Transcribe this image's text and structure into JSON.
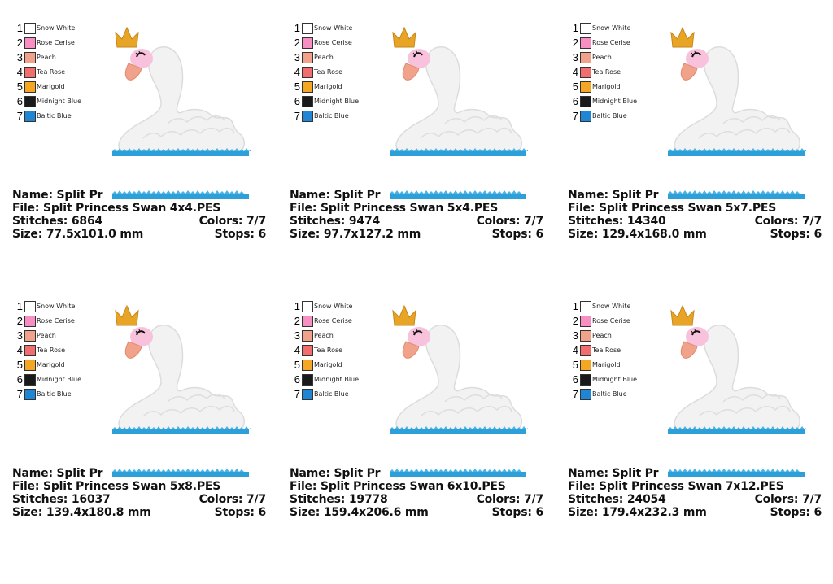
{
  "palette": [
    {
      "num": "1",
      "name": "Snow White",
      "color": "#ffffff"
    },
    {
      "num": "2",
      "name": "Rose Cerise",
      "color": "#f78fc2"
    },
    {
      "num": "3",
      "name": "Peach",
      "color": "#f0a38a"
    },
    {
      "num": "4",
      "name": "Tea Rose",
      "color": "#f26d6d"
    },
    {
      "num": "5",
      "name": "Marigold",
      "color": "#f5a623"
    },
    {
      "num": "6",
      "name": "Midnight Blue",
      "color": "#1a1a1a"
    },
    {
      "num": "7",
      "name": "Baltic Blue",
      "color": "#1f86d6"
    }
  ],
  "labels": {
    "name": "Name:",
    "file": "File:",
    "stitches": "Stitches:",
    "size": "Size:",
    "colors": "Colors:",
    "stops": "Stops:"
  },
  "designs": [
    {
      "name": "Split Pr",
      "file": "Split Princess Swan 4x4.PES",
      "stitches": "6864",
      "colors": "7/7",
      "size": "77.5x101.0 mm",
      "stops": "6"
    },
    {
      "name": "Split Pr",
      "file": "Split Princess Swan 5x4.PES",
      "stitches": "9474",
      "colors": "7/7",
      "size": "97.7x127.2 mm",
      "stops": "6"
    },
    {
      "name": "Split Pr",
      "file": "Split Princess Swan 5x7.PES",
      "stitches": "14340",
      "colors": "7/7",
      "size": "129.4x168.0 mm",
      "stops": "6"
    },
    {
      "name": "Split Pr",
      "file": "Split Princess Swan 5x8.PES",
      "stitches": "16037",
      "colors": "7/7",
      "size": "139.4x180.8 mm",
      "stops": "6"
    },
    {
      "name": "Split Pr",
      "file": "Split Princess Swan 6x10.PES",
      "stitches": "19778",
      "colors": "7/7",
      "size": "159.4x206.6 mm",
      "stops": "6"
    },
    {
      "name": "Split Pr",
      "file": "Split Princess Swan 7x12.PES",
      "stitches": "24054",
      "colors": "7/7",
      "size": "179.4x232.3 mm",
      "stops": "6"
    }
  ]
}
